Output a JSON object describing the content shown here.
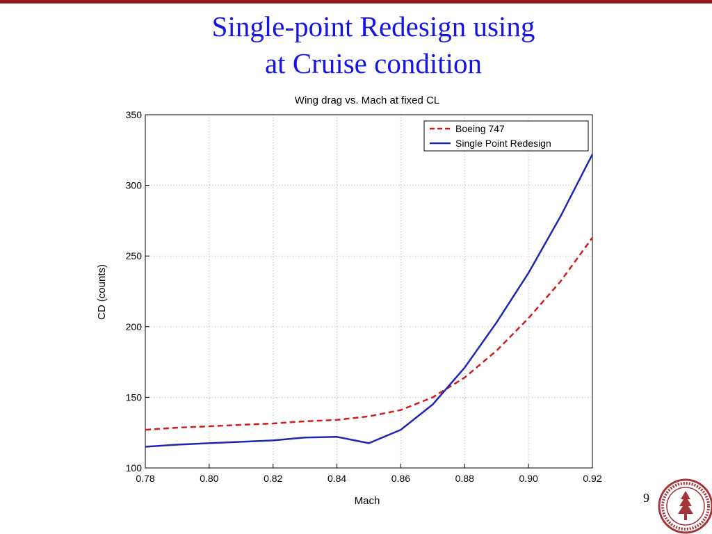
{
  "slide": {
    "title_line1": "Single-point Redesign using",
    "title_line2": "at Cruise condition",
    "page_number": "9"
  },
  "colors": {
    "accent_rule": "#8c1515",
    "title": "#1414e6",
    "series_boeing": "#d11c1c",
    "series_redesign": "#1b27b0"
  },
  "chart_data": {
    "type": "line",
    "title": "Wing drag vs. Mach at fixed CL",
    "xlabel": "Mach",
    "ylabel": "CD (counts)",
    "xlim": [
      0.78,
      0.92
    ],
    "ylim": [
      100,
      350
    ],
    "x_ticks": [
      "0.78",
      "0.80",
      "0.82",
      "0.84",
      "0.86",
      "0.88",
      "0.90",
      "0.92"
    ],
    "y_ticks": [
      "100",
      "150",
      "200",
      "250",
      "300",
      "350"
    ],
    "grid": true,
    "legend_position": "top-right",
    "series": [
      {
        "name": "Boeing 747",
        "style": "dashed",
        "x": [
          0.78,
          0.79,
          0.8,
          0.81,
          0.82,
          0.83,
          0.84,
          0.85,
          0.86,
          0.87,
          0.88,
          0.89,
          0.9,
          0.91,
          0.92
        ],
        "y": [
          127,
          128.5,
          129.5,
          130.5,
          131.5,
          133,
          134,
          136.5,
          141,
          150,
          164,
          183,
          206,
          232,
          263
        ]
      },
      {
        "name": "Single Point Redesign",
        "style": "solid",
        "x": [
          0.78,
          0.79,
          0.8,
          0.81,
          0.82,
          0.83,
          0.84,
          0.85,
          0.86,
          0.87,
          0.88,
          0.89,
          0.9,
          0.91,
          0.92
        ],
        "y": [
          115,
          116.5,
          117.5,
          118.5,
          119.5,
          121.5,
          122,
          117.5,
          127,
          145,
          171,
          203,
          238,
          278,
          322
        ]
      }
    ]
  }
}
